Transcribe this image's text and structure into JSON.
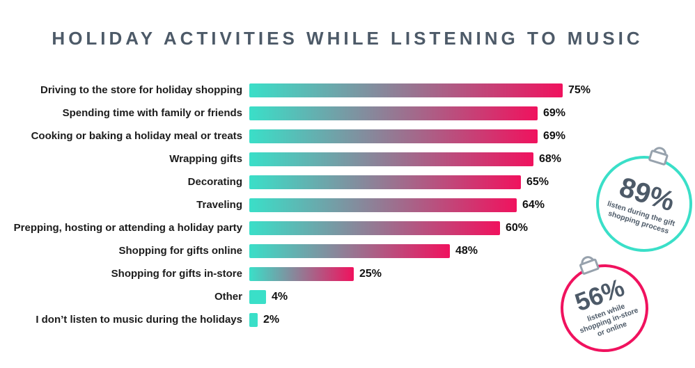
{
  "title": "HOLIDAY ACTIVITIES WHILE LISTENING TO MUSIC",
  "chart_data": {
    "type": "bar",
    "orientation": "horizontal",
    "title": "HOLIDAY ACTIVITIES WHILE LISTENING TO MUSIC",
    "categories": [
      "Driving to the store for holiday shopping",
      "Spending time with family or friends",
      "Cooking or baking a holiday meal or treats",
      "Wrapping gifts",
      "Decorating",
      "Traveling",
      "Prepping, hosting or attending a holiday party",
      "Shopping for gifts online",
      "Shopping for gifts in-store",
      "Other",
      "I don’t listen to music during the holidays"
    ],
    "values": [
      75,
      69,
      69,
      68,
      65,
      64,
      60,
      48,
      25,
      4,
      2
    ],
    "value_labels": [
      "75%",
      "69%",
      "69%",
      "68%",
      "65%",
      "64%",
      "60%",
      "48%",
      "25%",
      "4%",
      "2%"
    ],
    "xlim": [
      0,
      100
    ],
    "grid": false,
    "legend": false,
    "bar_gradient": [
      "#3ADFC8",
      "#F0125E"
    ]
  },
  "badges": [
    {
      "value": "89%",
      "caption": "listen during the gift shopping process",
      "color": "#3ADFC8"
    },
    {
      "value": "56%",
      "caption": "listen while shopping in-store or online",
      "color": "#F0125E"
    }
  ],
  "colors": {
    "title": "#4d5a68",
    "teal": "#3ADFC8",
    "pink": "#F0125E"
  }
}
